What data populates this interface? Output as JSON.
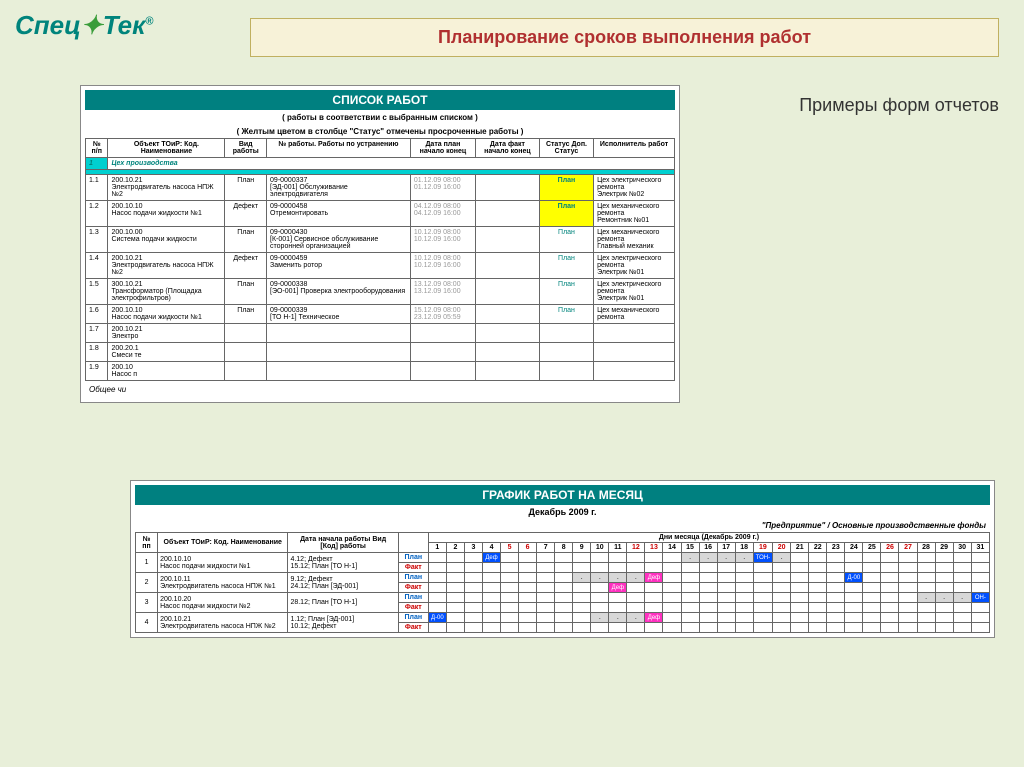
{
  "logo": {
    "part1": "Спец",
    "part2": "Тек",
    "r": "®"
  },
  "title": "Планирование сроков выполнения работ",
  "side_label": "Примеры форм отчетов",
  "report1": {
    "title": "СПИСОК РАБОТ",
    "sub": "( работы в соответствии с выбранным списком )",
    "sub2": "( Желтым цветом в столбце \"Статус\" отмечены просроченные работы )",
    "headers": [
      "№ п/п",
      "Объект ТОиР: Код. Наименование",
      "Вид работы",
      "№ работы. Работы по устранению",
      "Дата план начало конец",
      "Дата факт начало конец",
      "Статус Доп. Статус",
      "Исполнитель работ"
    ],
    "section": "Цех производства",
    "rows": [
      {
        "n": "1.1",
        "obj": "200.10.21\nЭлектродвигатель насоса НПЖ №2",
        "vid": "План",
        "rab": "09-0000337\n[ЭД-001] Обслуживание электродвигателя",
        "d1": "01.12.09 08:00\n01.12.09 16:00",
        "d2": "",
        "st": "План",
        "sty": true,
        "isp": "Цех электрического ремонта\nЭлектрик №02"
      },
      {
        "n": "1.2",
        "obj": "200.10.10\nНасос подачи жидкости №1",
        "vid": "Дефект",
        "rab": "09-0000458\nОтремонтировать",
        "d1": "04.12.09 08:00\n04.12.09 16:00",
        "d2": "",
        "st": "План",
        "sty": true,
        "isp": "Цех механического ремонта\nРемонтник №01"
      },
      {
        "n": "1.3",
        "obj": "200.10.00\nСистема подачи жидкости",
        "vid": "План",
        "rab": "09-0000430\n[К-001] Сервисное обслуживание сторонней организацией",
        "d1": "10.12.09 08:00\n10.12.09 16:00",
        "d2": "",
        "st": "План",
        "sty": false,
        "isp": "Цех механического ремонта\nГлавный механик"
      },
      {
        "n": "1.4",
        "obj": "200.10.21\nЭлектродвигатель насоса НПЖ №2",
        "vid": "Дефект",
        "rab": "09-0000459\nЗаменить ротор",
        "d1": "10.12.09 08:00\n10.12.09 16:00",
        "d2": "",
        "st": "План",
        "sty": false,
        "isp": "Цех электрического ремонта\nЭлектрик №01"
      },
      {
        "n": "1.5",
        "obj": "300.10.21\nТрансформатор (Площадка электрофильтров)",
        "vid": "План",
        "rab": "09-0000338\n[ЭО-001] Проверка электрооборудования",
        "d1": "13.12.09 08:00\n13.12.09 16:00",
        "d2": "",
        "st": "План",
        "sty": false,
        "isp": "Цех электрического ремонта\nЭлектрик №01"
      },
      {
        "n": "1.6",
        "obj": "200.10.10\nНасос подачи жидкости №1",
        "vid": "План",
        "rab": "09-0000339\n[ТО Н-1] Техническое",
        "d1": "15.12.09 08:00\n23.12.09 05:59",
        "d2": "",
        "st": "План",
        "sty": false,
        "isp": "Цех механического ремонта"
      },
      {
        "n": "1.7",
        "obj": "200.10.21\nЭлектро",
        "vid": "",
        "rab": "",
        "d1": "",
        "d2": "",
        "st": "",
        "sty": false,
        "isp": ""
      },
      {
        "n": "1.8",
        "obj": "200.20.1\nСмеси те",
        "vid": "",
        "rab": "",
        "d1": "",
        "d2": "",
        "st": "",
        "sty": false,
        "isp": ""
      },
      {
        "n": "1.9",
        "obj": "200.10\nНасос п",
        "vid": "",
        "rab": "",
        "d1": "",
        "d2": "",
        "st": "",
        "sty": false,
        "isp": ""
      }
    ],
    "footer": "Общее чи"
  },
  "report2": {
    "title": "ГРАФИК РАБОТ НА МЕСЯЦ",
    "sub": "Декабрь 2009 г.",
    "sub2": "\"Предприятие\" / Основные производственные фонды",
    "h_n": "№ пп",
    "h_obj": "Объект ТОиР: Код. Наименование",
    "h_date": "Дата начала работы Вид [Код] работы",
    "h_days": "Дни месяца (Декабрь 2009 г.)",
    "days": [
      "1",
      "2",
      "3",
      "4",
      "5",
      "6",
      "7",
      "8",
      "9",
      "10",
      "11",
      "12",
      "13",
      "14",
      "15",
      "16",
      "17",
      "18",
      "19",
      "20",
      "21",
      "22",
      "23",
      "24",
      "25",
      "26",
      "27",
      "28",
      "29",
      "30",
      "31"
    ],
    "red_days": [
      5,
      6,
      12,
      13,
      19,
      20,
      26,
      27
    ],
    "plan": "План",
    "fact": "Факт",
    "rows": [
      {
        "n": "1",
        "obj": "200.10.10\nНасос подачи жидкости №1",
        "date": "4.12; Дефект\n15.12; План [ТО Н-1]",
        "plan": {
          "4": "blue:Деф",
          "15": "grey",
          "16": "grey",
          "17": "grey",
          "18": "grey",
          "19": "blue:ТОН-",
          "20": "grey"
        },
        "fact": {}
      },
      {
        "n": "2",
        "obj": "200.10.11\nЭлектродвигатель насоса НПЖ №1",
        "date": "9.12; Дефект\n24.12; План [ЭД-001]",
        "plan": {
          "9": "grey",
          "10": "grey",
          "11": "grey",
          "12": "grey",
          "13": "pink:Деф",
          "24": "blue:Д-00"
        },
        "fact": {
          "11": "pink:Деф"
        }
      },
      {
        "n": "3",
        "obj": "200.10.20\nНасос подачи жидкости №2",
        "date": "28.12; План [ТО Н-1]",
        "plan": {
          "28": "grey",
          "29": "grey",
          "30": "grey",
          "31": "blue:ОН-"
        },
        "fact": {}
      },
      {
        "n": "4",
        "obj": "200.10.21\nЭлектродвигатель насоса НПЖ №2",
        "date": "1.12; План [ЭД-001]\n10.12; Дефект",
        "plan": {
          "1": "blue:Д-00",
          "10": "grey",
          "11": "grey",
          "12": "grey",
          "13": "pink:Деф"
        },
        "fact": {}
      }
    ]
  }
}
